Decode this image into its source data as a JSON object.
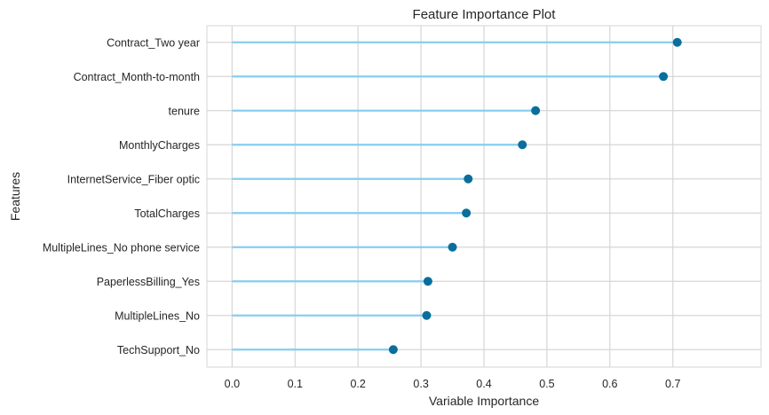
{
  "chart_data": {
    "type": "lollipop",
    "title": "Feature Importance Plot",
    "xlabel": "Variable Importance",
    "ylabel": "Features",
    "xlim": [
      -0.04,
      0.84
    ],
    "xticks": [
      "0.0",
      "0.1",
      "0.2",
      "0.3",
      "0.4",
      "0.5",
      "0.6",
      "0.7"
    ],
    "grid": true,
    "categories": [
      "Contract_Two year",
      "Contract_Month-to-month",
      "tenure",
      "MonthlyCharges",
      "InternetService_Fiber optic",
      "TotalCharges",
      "MultipleLines_No phone service",
      "PaperlessBilling_Yes",
      "MultipleLines_No",
      "TechSupport_No"
    ],
    "values": [
      0.707,
      0.685,
      0.482,
      0.461,
      0.375,
      0.372,
      0.35,
      0.311,
      0.309,
      0.256
    ],
    "colors": {
      "line": "#87cdf0",
      "marker": "#0a6e9c",
      "grid": "#d6d6d6",
      "frame": "#d6d6d6"
    }
  }
}
